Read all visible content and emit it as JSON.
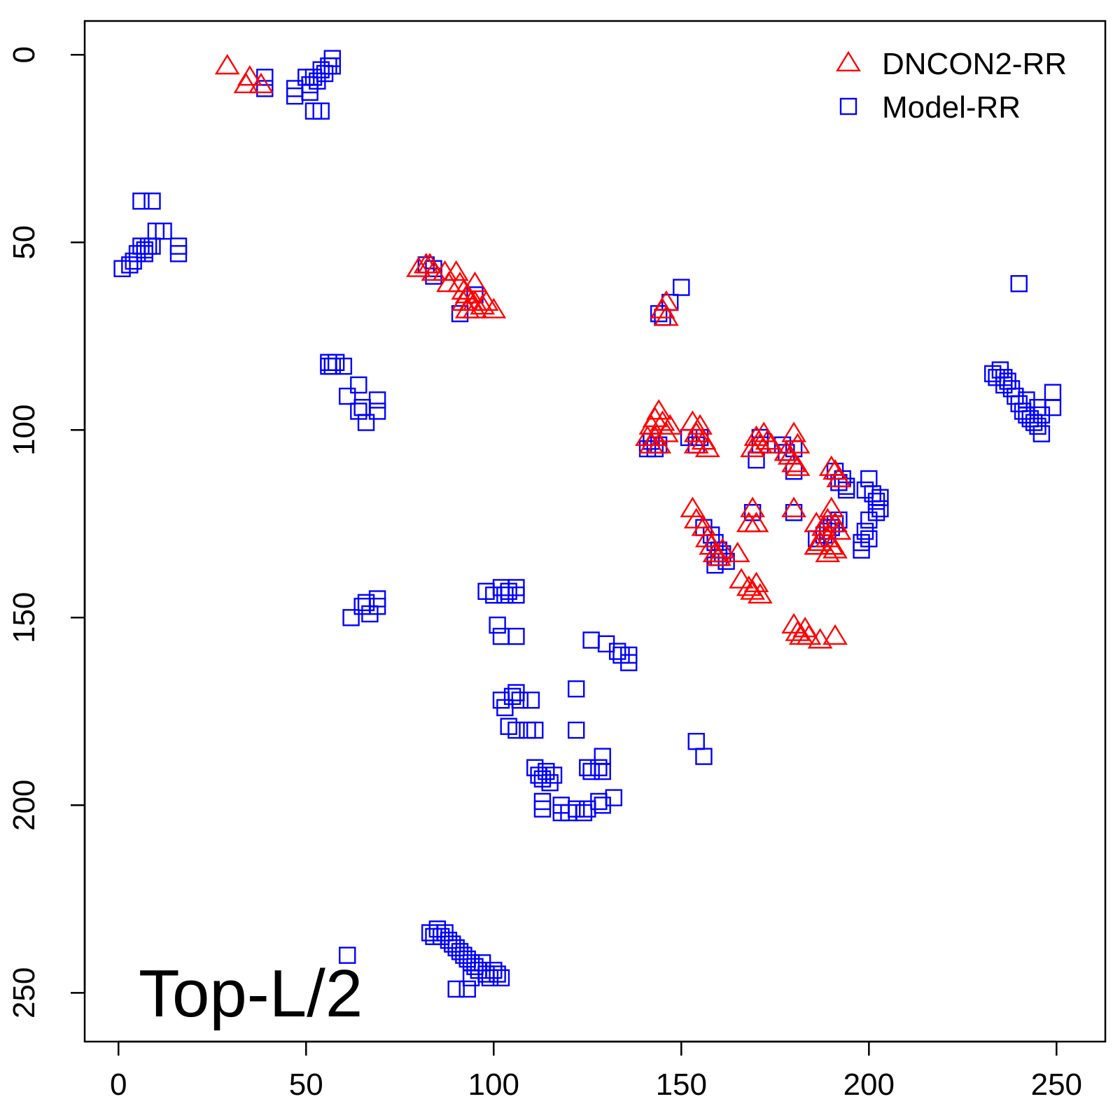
{
  "chart_data": {
    "type": "scatter",
    "title": "",
    "xlabel": "",
    "ylabel": "",
    "xlim": [
      -9,
      263
    ],
    "ylim": [
      -9,
      263
    ],
    "y_reversed": true,
    "x_ticks": [
      0,
      50,
      100,
      150,
      200,
      250
    ],
    "y_ticks": [
      0,
      50,
      100,
      150,
      200,
      250
    ],
    "x_tick_labels": [
      "0",
      "50",
      "100",
      "150",
      "200",
      "250"
    ],
    "y_tick_labels": [
      "0",
      "50",
      "100",
      "150",
      "200",
      "250"
    ],
    "grid": false,
    "legend_position": "top-right",
    "annotation": "Top-L/2",
    "series": [
      {
        "name": "DNCON2-RR",
        "marker": "triangle",
        "color": "#ff0000",
        "points": [
          [
            29,
            3
          ],
          [
            35,
            6
          ],
          [
            34,
            8
          ],
          [
            38,
            8
          ],
          [
            80,
            57
          ],
          [
            82,
            56
          ],
          [
            83,
            56
          ],
          [
            84,
            58
          ],
          [
            87,
            58
          ],
          [
            88,
            61
          ],
          [
            90,
            58
          ],
          [
            91,
            61
          ],
          [
            92,
            63
          ],
          [
            93,
            64
          ],
          [
            94,
            66
          ],
          [
            95,
            61
          ],
          [
            95,
            66
          ],
          [
            97,
            67
          ],
          [
            98,
            66
          ],
          [
            100,
            68
          ],
          [
            92,
            66
          ],
          [
            93,
            68
          ],
          [
            95,
            68
          ],
          [
            146,
            66
          ],
          [
            145,
            68
          ],
          [
            146,
            70
          ],
          [
            141,
            102
          ],
          [
            142,
            99
          ],
          [
            143,
            97
          ],
          [
            144,
            95
          ],
          [
            145,
            98
          ],
          [
            146,
            101
          ],
          [
            147,
            99
          ],
          [
            143,
            102
          ],
          [
            144,
            104
          ],
          [
            142,
            104
          ],
          [
            153,
            98
          ],
          [
            154,
            101
          ],
          [
            155,
            99
          ],
          [
            154,
            104
          ],
          [
            156,
            103
          ],
          [
            157,
            105
          ],
          [
            169,
            105
          ],
          [
            170,
            102
          ],
          [
            171,
            104
          ],
          [
            172,
            101
          ],
          [
            173,
            103
          ],
          [
            174,
            104
          ],
          [
            178,
            106
          ],
          [
            180,
            101
          ],
          [
            181,
            104
          ],
          [
            179,
            107
          ],
          [
            180,
            109
          ],
          [
            181,
            110
          ],
          [
            191,
            111
          ],
          [
            192,
            113
          ],
          [
            190,
            110
          ],
          [
            153,
            121
          ],
          [
            154,
            124
          ],
          [
            156,
            126
          ],
          [
            157,
            129
          ],
          [
            158,
            131
          ],
          [
            159,
            133
          ],
          [
            160,
            134
          ],
          [
            161,
            132
          ],
          [
            165,
            133
          ],
          [
            169,
            121
          ],
          [
            168,
            125
          ],
          [
            170,
            125
          ],
          [
            180,
            121
          ],
          [
            186,
            125
          ],
          [
            188,
            126
          ],
          [
            189,
            124
          ],
          [
            190,
            121
          ],
          [
            191,
            125
          ],
          [
            192,
            127
          ],
          [
            189,
            129
          ],
          [
            190,
            131
          ],
          [
            187,
            130
          ],
          [
            186,
            131
          ],
          [
            189,
            133
          ],
          [
            191,
            132
          ],
          [
            166,
            140
          ],
          [
            168,
            142
          ],
          [
            169,
            143
          ],
          [
            171,
            144
          ],
          [
            170,
            141
          ],
          [
            180,
            152
          ],
          [
            181,
            154
          ],
          [
            183,
            153
          ],
          [
            184,
            155
          ],
          [
            187,
            156
          ],
          [
            191,
            155
          ],
          [
            182,
            155
          ]
        ]
      },
      {
        "name": "Model-RR",
        "marker": "square",
        "color": "#0000ff",
        "points": [
          [
            39,
            6
          ],
          [
            39,
            9
          ],
          [
            47,
            9
          ],
          [
            47,
            11
          ],
          [
            50,
            6
          ],
          [
            51,
            8
          ],
          [
            51,
            10
          ],
          [
            52,
            6
          ],
          [
            53,
            7
          ],
          [
            54,
            4
          ],
          [
            55,
            5
          ],
          [
            56,
            3
          ],
          [
            57,
            1
          ],
          [
            57,
            3
          ],
          [
            52,
            15
          ],
          [
            54,
            15
          ],
          [
            6,
            39
          ],
          [
            9,
            39
          ],
          [
            10,
            47
          ],
          [
            12,
            47
          ],
          [
            6,
            51
          ],
          [
            7,
            52
          ],
          [
            8,
            51
          ],
          [
            5,
            53
          ],
          [
            4,
            55
          ],
          [
            3,
            56
          ],
          [
            1,
            57
          ],
          [
            7,
            53
          ],
          [
            9,
            51
          ],
          [
            16,
            51
          ],
          [
            16,
            53
          ],
          [
            82,
            56
          ],
          [
            84,
            57
          ],
          [
            84,
            59
          ],
          [
            91,
            69
          ],
          [
            95,
            64
          ],
          [
            147,
            66
          ],
          [
            150,
            62
          ],
          [
            144,
            69
          ],
          [
            145,
            70
          ],
          [
            56,
            82
          ],
          [
            57,
            83
          ],
          [
            58,
            82
          ],
          [
            56,
            83
          ],
          [
            60,
            83
          ],
          [
            61,
            91
          ],
          [
            64,
            88
          ],
          [
            65,
            94
          ],
          [
            66,
            98
          ],
          [
            69,
            92
          ],
          [
            69,
            95
          ],
          [
            64,
            95
          ],
          [
            141,
            105
          ],
          [
            143,
            105
          ],
          [
            144,
            104
          ],
          [
            142,
            103
          ],
          [
            152,
            102
          ],
          [
            154,
            104
          ],
          [
            155,
            102
          ],
          [
            171,
            102
          ],
          [
            171,
            104
          ],
          [
            170,
            108
          ],
          [
            177,
            104
          ],
          [
            178,
            106
          ],
          [
            180,
            105
          ],
          [
            180,
            111
          ],
          [
            191,
            111
          ],
          [
            192,
            114
          ],
          [
            193,
            113
          ],
          [
            194,
            115
          ],
          [
            194,
            116
          ],
          [
            200,
            113
          ],
          [
            199,
            116
          ],
          [
            201,
            117
          ],
          [
            202,
            119
          ],
          [
            203,
            121
          ],
          [
            202,
            122
          ],
          [
            200,
            124
          ],
          [
            199,
            127
          ],
          [
            200,
            129
          ],
          [
            198,
            130
          ],
          [
            198,
            132
          ],
          [
            203,
            118
          ],
          [
            169,
            122
          ],
          [
            180,
            122
          ],
          [
            156,
            126
          ],
          [
            158,
            128
          ],
          [
            159,
            130
          ],
          [
            160,
            132
          ],
          [
            161,
            133
          ],
          [
            160,
            134
          ],
          [
            162,
            135
          ],
          [
            159,
            136
          ],
          [
            186,
            129
          ],
          [
            188,
            128
          ],
          [
            189,
            127
          ],
          [
            190,
            126
          ],
          [
            191,
            125
          ],
          [
            192,
            124
          ],
          [
            233,
            85
          ],
          [
            234,
            86
          ],
          [
            235,
            84
          ],
          [
            236,
            86
          ],
          [
            237,
            87
          ],
          [
            238,
            89
          ],
          [
            239,
            91
          ],
          [
            240,
            93
          ],
          [
            241,
            95
          ],
          [
            242,
            96
          ],
          [
            243,
            97
          ],
          [
            244,
            98
          ],
          [
            245,
            99
          ],
          [
            246,
            101
          ],
          [
            245,
            94
          ],
          [
            246,
            96
          ],
          [
            249,
            90
          ],
          [
            249,
            94
          ],
          [
            240,
            61
          ],
          [
            236,
            88
          ],
          [
            242,
            92
          ],
          [
            62,
            150
          ],
          [
            65,
            147
          ],
          [
            66,
            146
          ],
          [
            67,
            149
          ],
          [
            69,
            145
          ],
          [
            69,
            147
          ],
          [
            98,
            143
          ],
          [
            100,
            144
          ],
          [
            102,
            142
          ],
          [
            103,
            144
          ],
          [
            104,
            143
          ],
          [
            106,
            142
          ],
          [
            106,
            144
          ],
          [
            101,
            152
          ],
          [
            102,
            155
          ],
          [
            106,
            155
          ],
          [
            126,
            156
          ],
          [
            130,
            157
          ],
          [
            133,
            159
          ],
          [
            134,
            160
          ],
          [
            136,
            160
          ],
          [
            136,
            162
          ],
          [
            102,
            172
          ],
          [
            103,
            174
          ],
          [
            105,
            171
          ],
          [
            106,
            170
          ],
          [
            107,
            172
          ],
          [
            110,
            172
          ],
          [
            104,
            179
          ],
          [
            106,
            180
          ],
          [
            109,
            180
          ],
          [
            111,
            180
          ],
          [
            122,
            169
          ],
          [
            122,
            180
          ],
          [
            111,
            190
          ],
          [
            112,
            192
          ],
          [
            113,
            193
          ],
          [
            114,
            191
          ],
          [
            115,
            194
          ],
          [
            116,
            192
          ],
          [
            125,
            190
          ],
          [
            126,
            191
          ],
          [
            128,
            190
          ],
          [
            129,
            187
          ],
          [
            129,
            191
          ],
          [
            113,
            199
          ],
          [
            113,
            201
          ],
          [
            118,
            200
          ],
          [
            118,
            202
          ],
          [
            120,
            202
          ],
          [
            122,
            201
          ],
          [
            124,
            202
          ],
          [
            125,
            201
          ],
          [
            128,
            199
          ],
          [
            129,
            200
          ],
          [
            132,
            198
          ],
          [
            154,
            183
          ],
          [
            156,
            187
          ],
          [
            61,
            240
          ],
          [
            83,
            234
          ],
          [
            84,
            235
          ],
          [
            85,
            233
          ],
          [
            86,
            235
          ],
          [
            87,
            234
          ],
          [
            88,
            236
          ],
          [
            89,
            237
          ],
          [
            90,
            238
          ],
          [
            91,
            239
          ],
          [
            92,
            240
          ],
          [
            93,
            241
          ],
          [
            94,
            242
          ],
          [
            95,
            243
          ],
          [
            96,
            244
          ],
          [
            97,
            242
          ],
          [
            98,
            245
          ],
          [
            99,
            246
          ],
          [
            100,
            244
          ],
          [
            101,
            245
          ],
          [
            102,
            246
          ],
          [
            90,
            249
          ],
          [
            93,
            249
          ],
          [
            94,
            246
          ]
        ]
      }
    ]
  }
}
